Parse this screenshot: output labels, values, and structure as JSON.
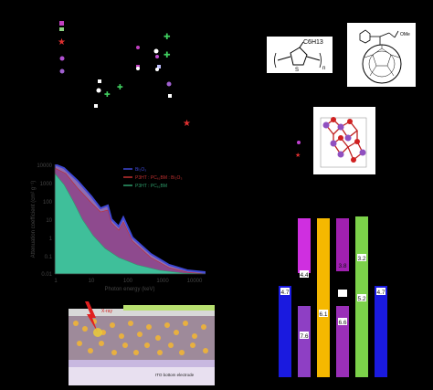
{
  "molecule_p3ht": {
    "side_chain": "C6H13",
    "ring_atom": "S",
    "repeat": "n"
  },
  "molecule_pcbm": {
    "ester": "OMe"
  },
  "attenuation_chart": {
    "ylabel": "Attenuation coefficient (cm² g⁻¹)",
    "xlabel": "Photon energy (keV)",
    "x_ticks": [
      "1",
      "10",
      "100",
      "1000",
      "10000"
    ],
    "y_ticks": [
      "10000",
      "1000",
      "100",
      "10",
      "1",
      "0.1",
      "0.01"
    ],
    "legend": [
      "Bi₂O₃",
      "P3HT : PC₆₁BM : Bi₂O₃",
      "P3HT : PC₆₁BM"
    ],
    "colors": {
      "bi2o3": "#3f49d6",
      "mix": "#8e4a8e",
      "base": "#2e9c6a"
    }
  },
  "device": {
    "xray_label": "X-ray",
    "bottom_electrode_label": "ITO bottom electrode"
  },
  "energy_diagram": {
    "bars": [
      {
        "label": "4.7",
        "color": "#1a1adf"
      },
      {
        "label": "7.6",
        "color": "#8e3fc4"
      },
      {
        "label": "4.4",
        "color": "#cf2fe0"
      },
      {
        "label": "6.1",
        "color": "#f5b800"
      },
      {
        "label": "3.8",
        "color": "#a020b0"
      },
      {
        "label": "6.6",
        "color": "#9a2fb8"
      },
      {
        "label": "3.2",
        "color": "#7cd24a"
      },
      {
        "label": "5.2",
        "color": "#7cd24a"
      },
      {
        "label": "4.7",
        "color": "#1a1adf"
      }
    ]
  }
}
